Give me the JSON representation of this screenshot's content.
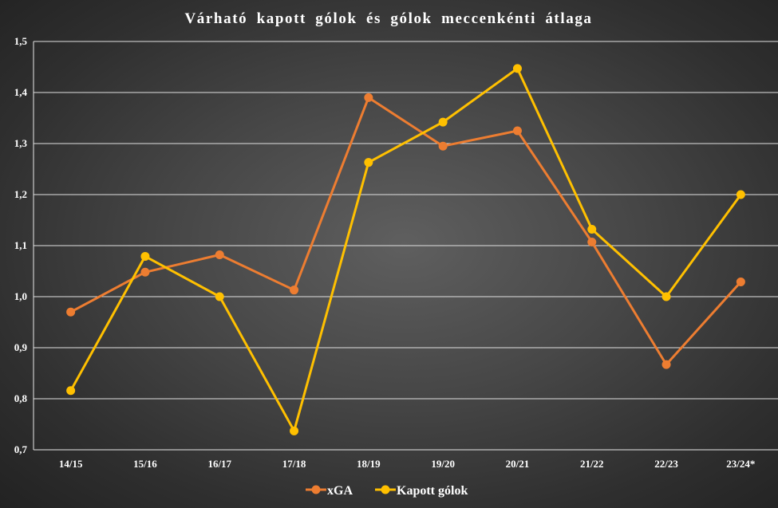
{
  "chart_data": {
    "type": "line",
    "title": "Várható kapott gólok és gólok meccenkénti átlaga",
    "xlabel": "",
    "ylabel": "",
    "categories": [
      "14/15",
      "15/16",
      "16/17",
      "17/18",
      "18/19",
      "19/20",
      "20/21",
      "21/22",
      "22/23",
      "23/24*"
    ],
    "series": [
      {
        "name": "xGA",
        "color": "#ED7D31",
        "values": [
          0.97,
          1.048,
          1.082,
          1.013,
          1.39,
          1.295,
          1.325,
          1.107,
          0.867,
          1.029
        ]
      },
      {
        "name": "Kapott gólok",
        "color": "#FFC000",
        "values": [
          0.816,
          1.079,
          1.0,
          0.737,
          1.263,
          1.342,
          1.447,
          1.132,
          1.0,
          1.2
        ]
      }
    ],
    "ylim": [
      0.7,
      1.5
    ],
    "yticks": [
      0.7,
      0.8,
      0.9,
      1.0,
      1.1,
      1.2,
      1.3,
      1.4,
      1.5
    ],
    "ytick_labels": [
      "0,7",
      "0,8",
      "0,9",
      "1,0",
      "1,1",
      "1,2",
      "1,3",
      "1,4",
      "1,5"
    ],
    "grid": true,
    "legend_position": "bottom-center"
  }
}
